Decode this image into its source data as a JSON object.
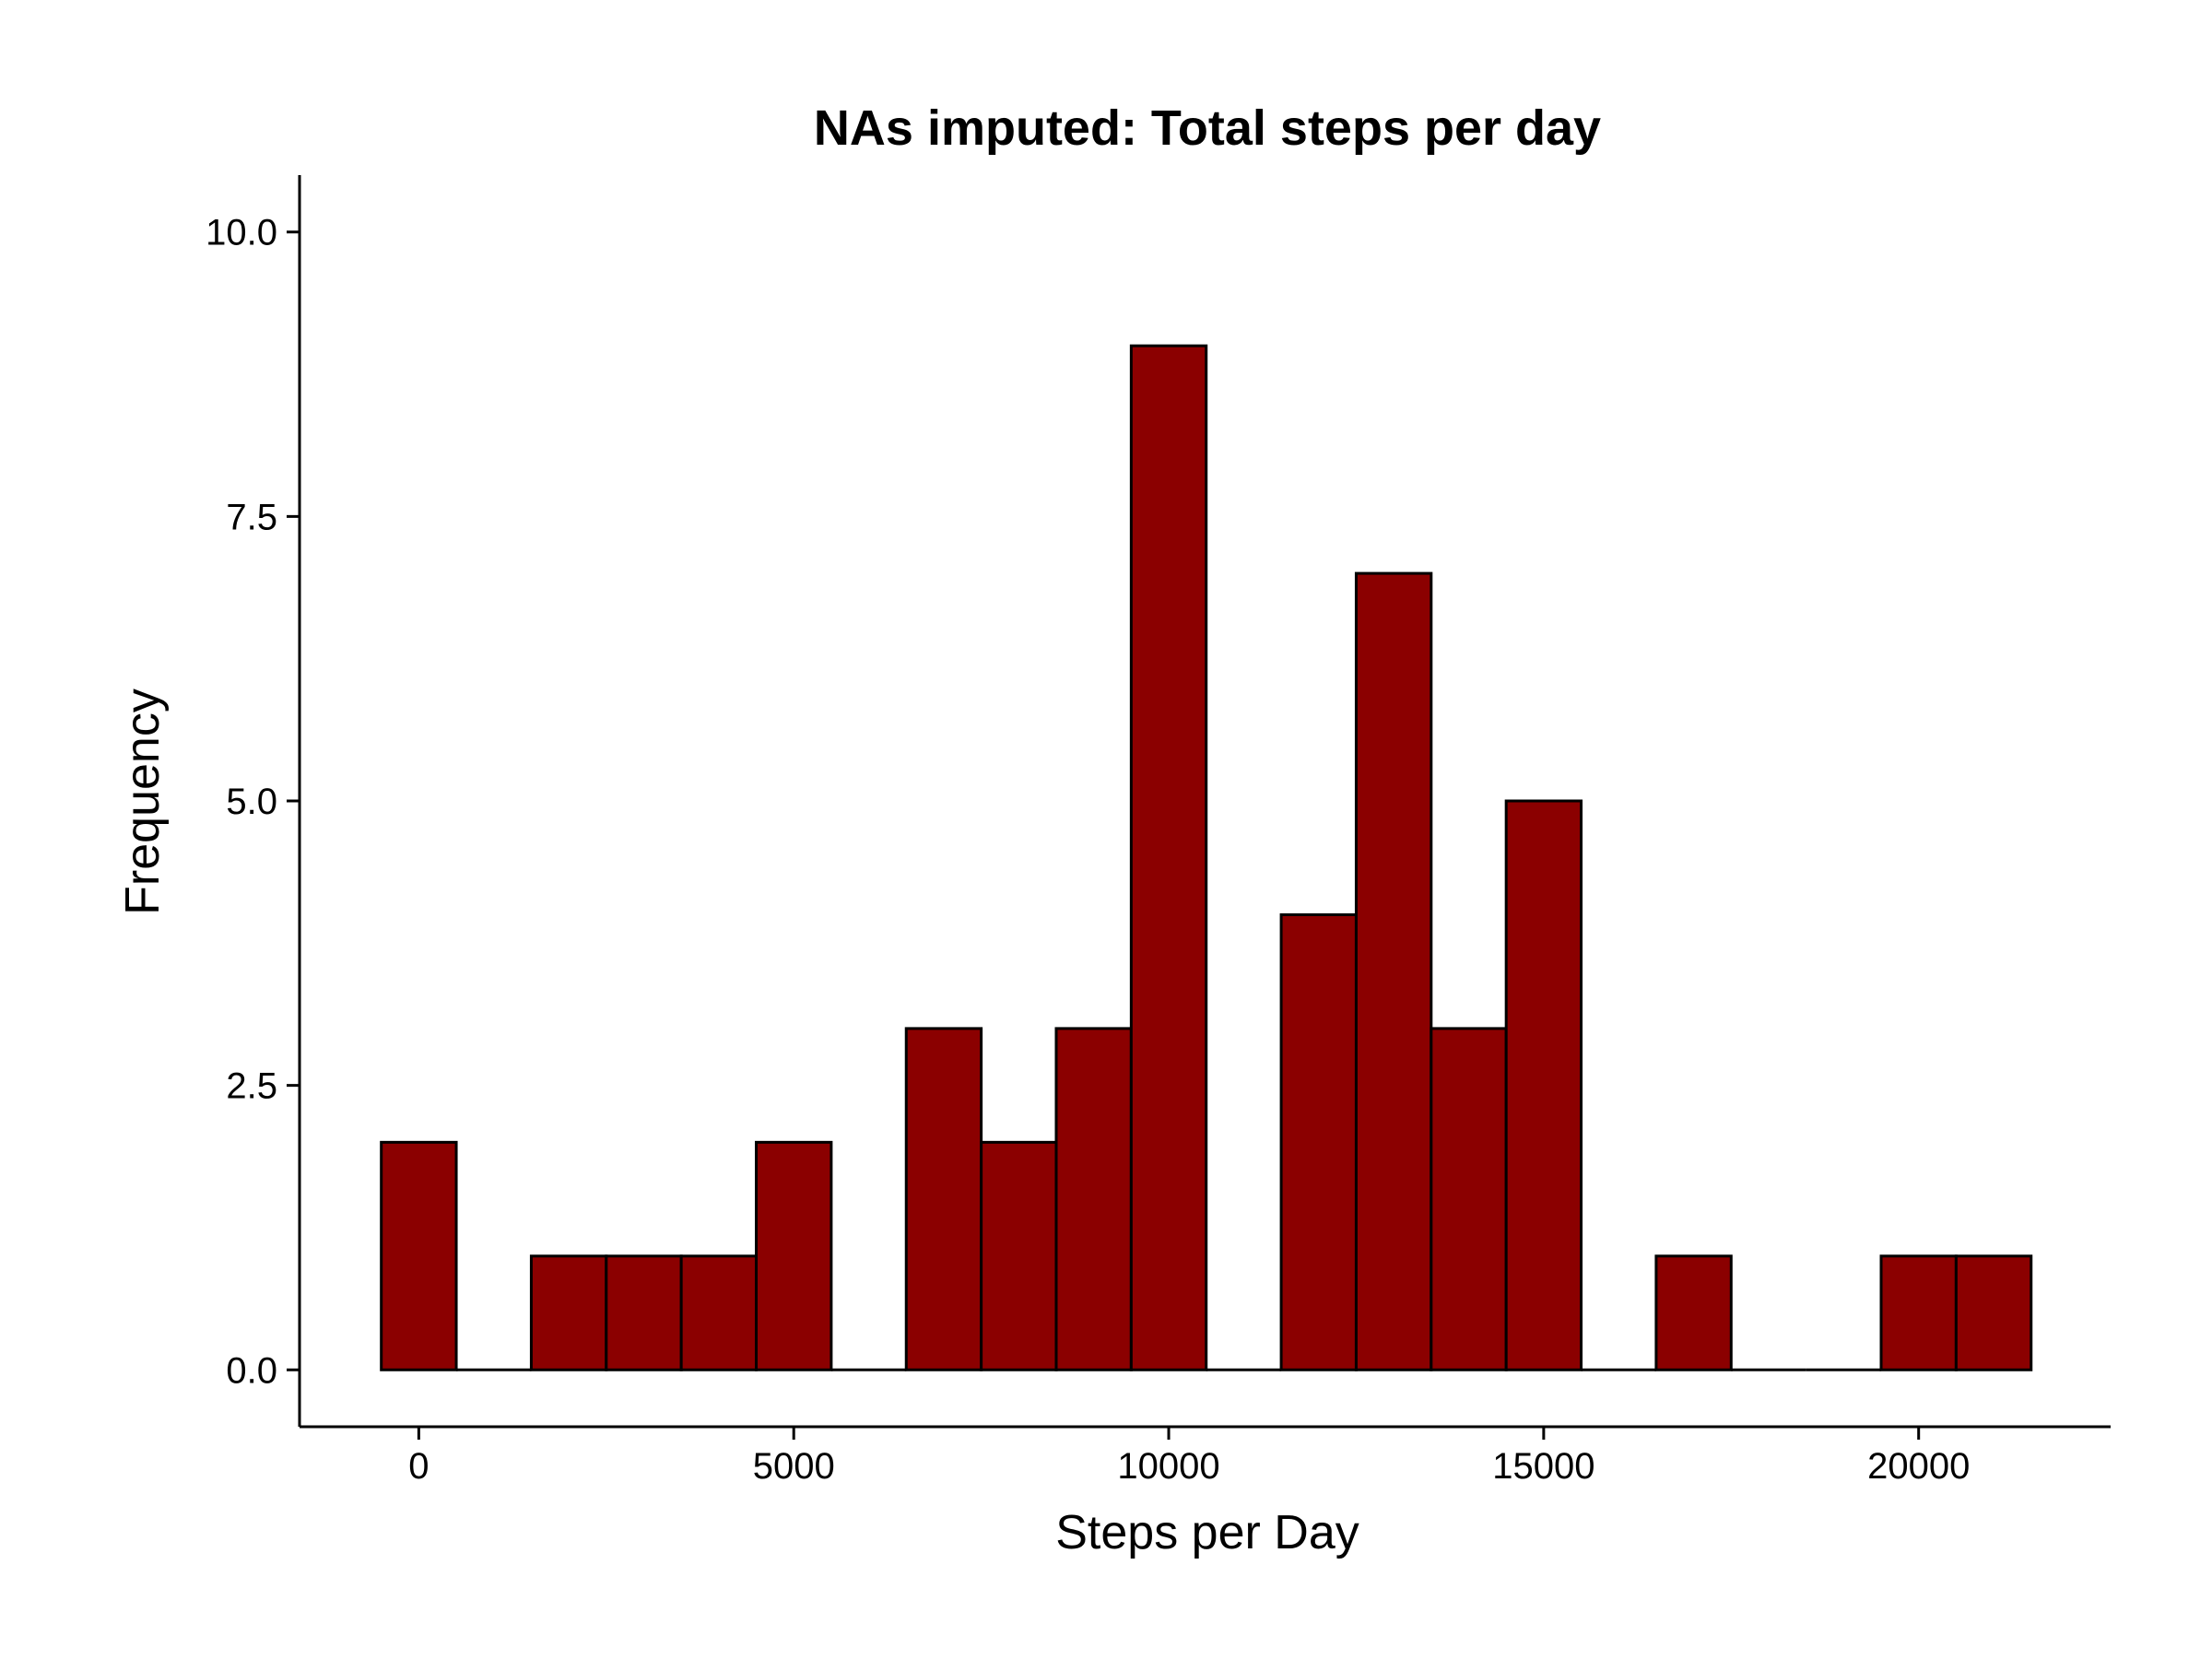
{
  "chart_data": {
    "type": "bar",
    "title": "NAs imputed: Total steps per day",
    "xlabel": "Steps per Day",
    "ylabel": "Frequency",
    "bin_width": 1000,
    "bins": [
      {
        "x": 0,
        "count": 2
      },
      {
        "x": 1000,
        "count": 0
      },
      {
        "x": 2000,
        "count": 1
      },
      {
        "x": 3000,
        "count": 1
      },
      {
        "x": 4000,
        "count": 1
      },
      {
        "x": 5000,
        "count": 2
      },
      {
        "x": 6000,
        "count": 0
      },
      {
        "x": 7000,
        "count": 3
      },
      {
        "x": 8000,
        "count": 2
      },
      {
        "x": 9000,
        "count": 3
      },
      {
        "x": 10000,
        "count": 9
      },
      {
        "x": 11000,
        "count": 0
      },
      {
        "x": 12000,
        "count": 4
      },
      {
        "x": 13000,
        "count": 7
      },
      {
        "x": 14000,
        "count": 3
      },
      {
        "x": 15000,
        "count": 5
      },
      {
        "x": 16000,
        "count": 0
      },
      {
        "x": 17000,
        "count": 1
      },
      {
        "x": 18000,
        "count": 0
      },
      {
        "x": 19000,
        "count": 0
      },
      {
        "x": 20000,
        "count": 1
      },
      {
        "x": 21000,
        "count": 1
      }
    ],
    "xlim": [
      -1590,
      22560
    ],
    "ylim": [
      -0.5,
      10.5
    ],
    "x_ticks": [
      0,
      5000,
      10000,
      15000,
      20000
    ],
    "x_tick_labels": [
      "0",
      "5000",
      "10000",
      "15000",
      "20000"
    ],
    "y_ticks": [
      0,
      2.5,
      5,
      7.5,
      10
    ],
    "y_tick_labels": [
      "0.0",
      "2.5",
      "5.0",
      "7.5",
      "10.0"
    ],
    "grid": false,
    "legend": "none",
    "bar_color": "#8b0000",
    "bar_outline": "#000000"
  }
}
